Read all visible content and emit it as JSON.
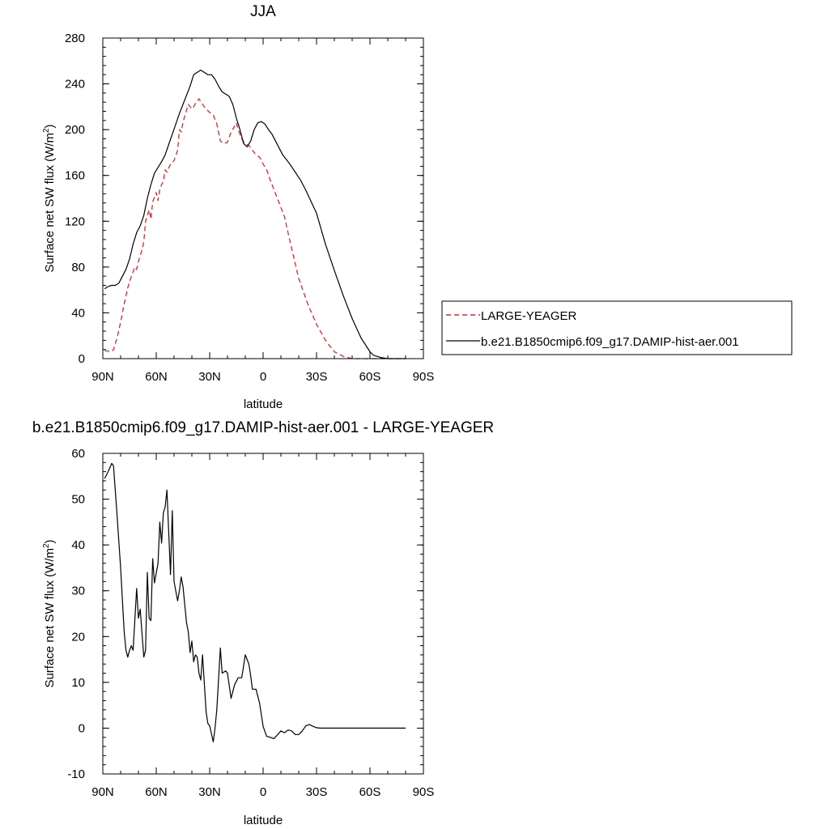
{
  "chart_data": [
    {
      "type": "line",
      "title": "JJA",
      "xlabel": "latitude",
      "ylabel": "Surface net SW flux (W/m",
      "ylabel_sup": "2",
      "ylabel_end": ")",
      "xlim": [
        90,
        -90
      ],
      "ylim": [
        0,
        280
      ],
      "xticks": [
        90,
        60,
        30,
        0,
        -30,
        -60,
        -90
      ],
      "xtick_labels": [
        "90N",
        "60N",
        "30N",
        "0",
        "30S",
        "60S",
        "90S"
      ],
      "yticks": [
        0,
        40,
        80,
        120,
        160,
        200,
        240,
        280
      ],
      "ytick_labels": [
        "0",
        "40",
        "80",
        "120",
        "160",
        "200",
        "240",
        "280"
      ],
      "legend_position": "right",
      "series": [
        {
          "name": "LARGE-YEAGER",
          "color": "#e8222a",
          "dash": "dashed",
          "x": [
            89,
            85,
            84,
            82,
            80,
            78,
            76,
            74,
            72,
            71,
            70,
            68,
            67,
            66,
            64,
            63,
            62,
            60,
            59,
            58,
            57,
            56,
            55,
            54,
            52,
            50,
            48,
            47,
            46,
            45,
            44,
            42,
            40,
            39,
            38,
            37,
            36,
            34,
            32,
            30,
            28,
            26,
            24,
            22,
            20,
            18,
            16,
            15,
            14,
            12,
            10,
            8,
            6,
            4,
            2,
            0,
            -2,
            -4,
            -6,
            -8,
            -10,
            -12,
            -15,
            -20,
            -25,
            -30,
            -35,
            -40,
            -45,
            -50,
            -55,
            -60,
            -62,
            -64,
            -66,
            -70,
            -75,
            -80
          ],
          "y": [
            7,
            6,
            8,
            18,
            32,
            48,
            62,
            72,
            80,
            78,
            85,
            95,
            102,
            120,
            130,
            122,
            137,
            145,
            138,
            148,
            152,
            155,
            165,
            163,
            170,
            173,
            182,
            200,
            198,
            206,
            212,
            222,
            218,
            220,
            223,
            225,
            227,
            222,
            218,
            215,
            213,
            205,
            190,
            188,
            189,
            198,
            203,
            206,
            200,
            192,
            188,
            186,
            182,
            178,
            176,
            170,
            165,
            156,
            148,
            140,
            132,
            124,
            103,
            70,
            48,
            30,
            16,
            6,
            2,
            0,
            0,
            0,
            0,
            0,
            0,
            0,
            0,
            0
          ]
        },
        {
          "name": "b.e21.B1850cmip6.f09_g17.DAMIP-hist-aer.001",
          "color": "#000000",
          "dash": "solid",
          "x": [
            89,
            87,
            85,
            83,
            81,
            79,
            77,
            75,
            73,
            71,
            69,
            67,
            65,
            63,
            61,
            59,
            57,
            55,
            53,
            51,
            49,
            47,
            45,
            43,
            41,
            39,
            37,
            35,
            33,
            31,
            29,
            27,
            25,
            23,
            21,
            19,
            17,
            15,
            13,
            11,
            9,
            7,
            5,
            3,
            1,
            -1,
            -3,
            -5,
            -7,
            -9,
            -11,
            -13,
            -15,
            -18,
            -21,
            -24,
            -27,
            -30,
            -35,
            -40,
            -45,
            -50,
            -55,
            -60,
            -62,
            -64,
            -66,
            -70,
            -75,
            -80
          ],
          "y": [
            61,
            63,
            64,
            64,
            66,
            72,
            78,
            87,
            100,
            110,
            116,
            125,
            140,
            152,
            162,
            167,
            172,
            178,
            187,
            196,
            205,
            214,
            222,
            230,
            238,
            248,
            250,
            252,
            250,
            248,
            248,
            244,
            238,
            233,
            231,
            229,
            222,
            210,
            200,
            188,
            185,
            190,
            200,
            206,
            207,
            205,
            200,
            196,
            190,
            184,
            178,
            174,
            170,
            163,
            156,
            147,
            137,
            127,
            100,
            77,
            55,
            35,
            18,
            6,
            3,
            2,
            1,
            0,
            0,
            0
          ]
        }
      ]
    },
    {
      "type": "line",
      "title": "b.e21.B1850cmip6.f09_g17.DAMIP-hist-aer.001 - LARGE-YEAGER",
      "xlabel": "latitude",
      "ylabel": "Surface net SW flux (W/m",
      "ylabel_sup": "2",
      "ylabel_end": ")",
      "xlim": [
        90,
        -90
      ],
      "ylim": [
        -10,
        60
      ],
      "xticks": [
        90,
        60,
        30,
        0,
        -30,
        -60,
        -90
      ],
      "xtick_labels": [
        "90N",
        "60N",
        "30N",
        "0",
        "30S",
        "60S",
        "90S"
      ],
      "yticks": [
        -10,
        0,
        10,
        20,
        30,
        40,
        50,
        60
      ],
      "ytick_labels": [
        "-10",
        "0",
        "10",
        "20",
        "30",
        "40",
        "50",
        "60"
      ],
      "series": [
        {
          "color": "#000000",
          "dash": "solid",
          "x": [
            89,
            87,
            85,
            84,
            82,
            80,
            78,
            77,
            76,
            75,
            74,
            73,
            71,
            70,
            69,
            67,
            66,
            65,
            64,
            63,
            62,
            61,
            59,
            58,
            57,
            56,
            55,
            54,
            52,
            51,
            50,
            48,
            47,
            46,
            45,
            44,
            43,
            42,
            41,
            40,
            39,
            38,
            37,
            36,
            35,
            34,
            32,
            31,
            30,
            28,
            27,
            26,
            24,
            23,
            21,
            20,
            18,
            16,
            14,
            12,
            11,
            10,
            8,
            7,
            6,
            4,
            2,
            0,
            -2,
            -4,
            -6,
            -8,
            -10,
            -12,
            -14,
            -16,
            -18,
            -20,
            -22,
            -24,
            -26,
            -28,
            -30,
            -32,
            -33,
            -35,
            -37,
            -40,
            -43,
            -45,
            -48,
            -50,
            -52,
            -55,
            -57,
            -59,
            -62,
            -65,
            -68,
            -70,
            -72,
            -75,
            -80
          ],
          "y": [
            54.5,
            56,
            57.8,
            57.3,
            46.5,
            35,
            21,
            17,
            15.5,
            17,
            18,
            17,
            30.5,
            24,
            26,
            15.5,
            17,
            34,
            24,
            23.5,
            37,
            31.7,
            36,
            45,
            40.4,
            47,
            48.3,
            52,
            33.5,
            47.5,
            32,
            27.8,
            30,
            33,
            31,
            27,
            23,
            21,
            16.5,
            19,
            14.5,
            16,
            15.5,
            12,
            10.5,
            16,
            3.5,
            1,
            0.5,
            -3,
            0,
            4,
            17.5,
            12,
            12.5,
            12,
            6.5,
            9.5,
            11,
            11,
            13.5,
            16,
            14,
            11.5,
            8.5,
            8.5,
            5.5,
            0.4,
            -1.8,
            -2,
            -2.3,
            -1.5,
            -0.6,
            -1,
            -0.4,
            -0.6,
            -1.4,
            -1.4,
            -0.6,
            0.5,
            0.8,
            0.4,
            0.1,
            0,
            0,
            0,
            0,
            0,
            0,
            0,
            0,
            0,
            0,
            0,
            0,
            0,
            0,
            0,
            0,
            0,
            0,
            0,
            0
          ]
        }
      ]
    }
  ]
}
